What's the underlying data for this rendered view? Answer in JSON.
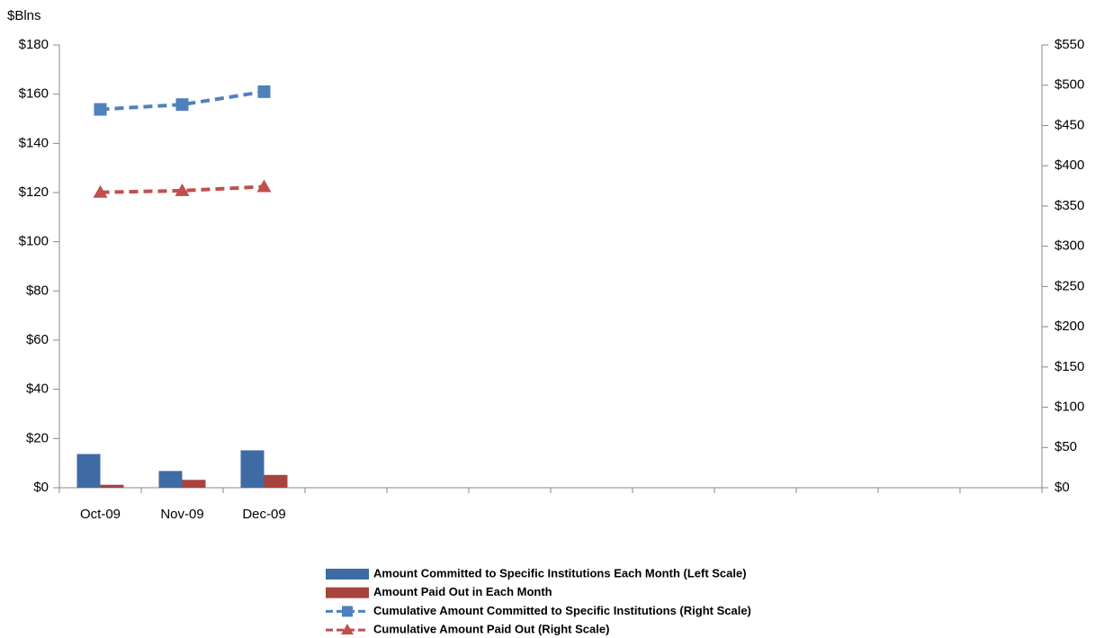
{
  "chart_data": {
    "type": "combo",
    "y_label": "$Blns",
    "categories": [
      "Oct-09",
      "Nov-09",
      "Dec-09",
      null,
      null,
      null,
      null,
      null,
      null,
      null,
      null,
      null
    ],
    "series": [
      {
        "name": "Amount Committed to Specific Institutions Each Month (Left Scale)",
        "type": "bar",
        "color": "#3f6ba5",
        "values": [
          13.7,
          6.8,
          15.2,
          null,
          null,
          null,
          null,
          null,
          null,
          null,
          null,
          null
        ]
      },
      {
        "name": "Amount Paid Out in Each Month",
        "type": "bar",
        "color": "#a8423f",
        "values": [
          1.2,
          3.2,
          5.2,
          null,
          null,
          null,
          null,
          null,
          null,
          null,
          null,
          null
        ]
      },
      {
        "name": "Cumulative Amount Committed to Specific Institutions (Right Scale)",
        "type": "line",
        "marker": "square",
        "axis": "y2",
        "color": "#4f81bd",
        "values": [
          470,
          476,
          492,
          null,
          null,
          null,
          null,
          null,
          null,
          null,
          null,
          null
        ]
      },
      {
        "name": "Cumulative Amount Paid Out (Right Scale)",
        "type": "line",
        "marker": "triangle",
        "axis": "y2",
        "color": "#c0504d",
        "values": [
          367,
          369,
          374,
          null,
          null,
          null,
          null,
          null,
          null,
          null,
          null,
          null
        ]
      }
    ],
    "ylim": [
      0,
      180
    ],
    "yticks": [
      {
        "value": 0,
        "label": "$0"
      },
      {
        "value": 20,
        "label": "$20"
      },
      {
        "value": 40,
        "label": "$40"
      },
      {
        "value": 60,
        "label": "$60"
      },
      {
        "value": 80,
        "label": "$80"
      },
      {
        "value": 100,
        "label": "$100"
      },
      {
        "value": 120,
        "label": "$120"
      },
      {
        "value": 140,
        "label": "$140"
      },
      {
        "value": 160,
        "label": "$160"
      },
      {
        "value": 180,
        "label": "$180"
      }
    ],
    "y2lim": [
      0,
      550
    ],
    "y2ticks": [
      {
        "value": 0,
        "label": "$0"
      },
      {
        "value": 50,
        "label": "$50"
      },
      {
        "value": 100,
        "label": "$100"
      },
      {
        "value": 150,
        "label": "$150"
      },
      {
        "value": 200,
        "label": "$200"
      },
      {
        "value": 250,
        "label": "$250"
      },
      {
        "value": 300,
        "label": "$300"
      },
      {
        "value": 350,
        "label": "$350"
      },
      {
        "value": 400,
        "label": "$400"
      },
      {
        "value": 450,
        "label": "$450"
      },
      {
        "value": 500,
        "label": "$500"
      },
      {
        "value": 550,
        "label": "$550"
      }
    ],
    "grid": false,
    "legend": "bottom"
  }
}
